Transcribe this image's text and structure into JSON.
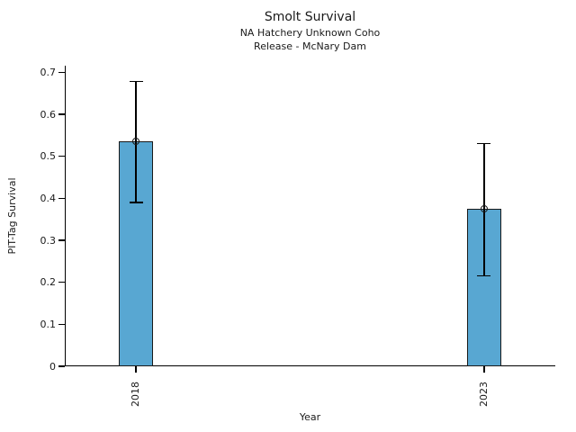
{
  "header": {
    "title": "Smolt Survival",
    "subtitle_line1": "NA Hatchery Unknown Coho",
    "subtitle_line2": "Release - McNary Dam"
  },
  "chart_data": {
    "type": "bar",
    "title": "Smolt Survival",
    "subtitle": [
      "NA Hatchery Unknown Coho",
      "Release - McNary Dam"
    ],
    "categories": [
      "2018",
      "2023"
    ],
    "values": [
      0.535,
      0.375
    ],
    "error_low": [
      0.39,
      0.216
    ],
    "error_high": [
      0.678,
      0.531
    ],
    "xlabel": "Year",
    "ylabel": "PIT-Tag Survival",
    "ylim": [
      0,
      0.7
    ],
    "y_ticks": [
      0,
      0.1,
      0.2,
      0.3,
      0.4,
      0.5,
      0.6,
      0.7
    ],
    "y_tick_labels": [
      "0",
      "0.1",
      "0.2",
      "0.3",
      "0.4",
      "0.5",
      "0.6",
      "0.7"
    ],
    "x_tick_rotation_deg": 90,
    "bar_color": "#58A7D2",
    "edge_color": "#1a1a1a",
    "error_color": "#000000",
    "marker": "open-circle",
    "grid": false,
    "legend": false
  }
}
